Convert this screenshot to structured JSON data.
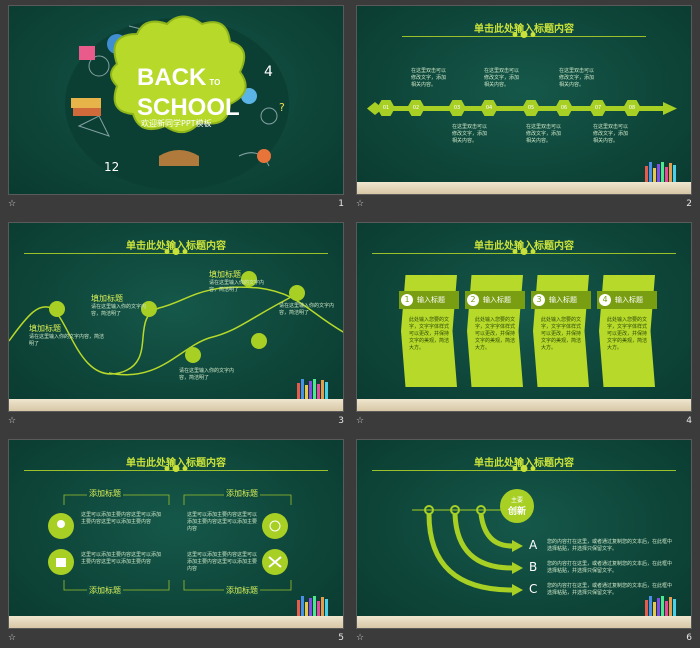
{
  "slides": [
    {
      "number": "1",
      "title_line1": "BACK",
      "title_to": "TO",
      "title_line2": "SCHOOL",
      "subtitle": "欢迎新同学PPT模板"
    },
    {
      "number": "2",
      "title": "单击此处输入标题内容",
      "item_text": "在这里双击可以修改文字，添加相关内容。",
      "steps": [
        "01",
        "02",
        "03",
        "04",
        "05",
        "06",
        "07",
        "08"
      ]
    },
    {
      "number": "3",
      "title": "单击此处输入标题内容",
      "points": [
        {
          "label": "填加标题",
          "text": "请在这里输入你的文字内容，简洁明了"
        },
        {
          "label": "填加标题",
          "text": "请在这里输入你的文字内容，简洁明了"
        },
        {
          "label": "填加标题",
          "text": "请在这里输入你的文字内容，简洁明了"
        },
        {
          "label": "填加标题",
          "text": "请在这里输入你的文字内容，简洁明了"
        },
        {
          "label": "填加标题",
          "text": "请在这里输入你的文字内容，简洁明了"
        }
      ]
    },
    {
      "number": "4",
      "title": "单击此处输入标题内容",
      "cards": [
        {
          "num": "1",
          "label": "输入标题",
          "text": "此处输入您要的文字，文字字体样式可以更改，并保持文字的美观，简洁大方。"
        },
        {
          "num": "2",
          "label": "输入标题",
          "text": "此处输入您要的文字，文字字体样式可以更改，并保持文字的美观，简洁大方。"
        },
        {
          "num": "3",
          "label": "输入标题",
          "text": "此处输入您要的文字，文字字体样式可以更改，并保持文字的美观，简洁大方。"
        },
        {
          "num": "4",
          "label": "输入标题",
          "text": "此处输入您要的文字，文字字体样式可以更改，并保持文字的美观，简洁大方。"
        }
      ]
    },
    {
      "number": "5",
      "title": "单击此处输入标题内容",
      "boxes": [
        {
          "label": "添加标题",
          "text": "这里可以添加主要内容这里可以添加主要内容这里可以添加主要内容"
        },
        {
          "label": "添加标题",
          "text": "这里可以添加主要内容这里可以添加主要内容这里可以添加主要内容"
        },
        {
          "label": "添加标题",
          "text": "这里可以添加主要内容这里可以添加主要内容这里可以添加主要内容"
        },
        {
          "label": "添加标题",
          "text": "这里可以添加主要内容这里可以添加主要内容这里可以添加主要内容"
        }
      ]
    },
    {
      "number": "6",
      "title": "单击此处输入标题内容",
      "center_line1": "主要",
      "center_line2": "创新",
      "options": [
        {
          "letter": "A",
          "text": "您的内容打在这里，或者通过复制您的文本后，在此框中选择粘贴，并选择只保留文字。"
        },
        {
          "letter": "B",
          "text": "您的内容打在这里，或者通过复制您的文本后，在此框中选择粘贴，并选择只保留文字。"
        },
        {
          "letter": "C",
          "text": "您的内容打在这里，或者通过复制您的文本后，在此框中选择粘贴，并选择只保留文字。"
        }
      ]
    }
  ],
  "colors": {
    "board": "#0f4a3e",
    "lime": "#a7cf24",
    "title": "#c9e23a"
  }
}
